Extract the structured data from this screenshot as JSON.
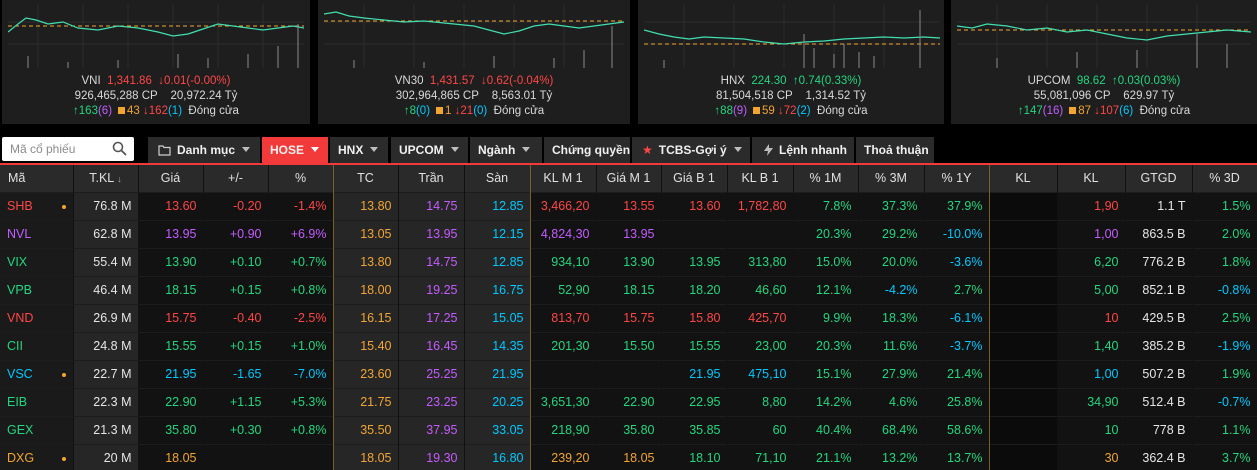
{
  "indices": [
    {
      "name": "VNI",
      "value": "1,341.86",
      "change": "0.01(-0.00%)",
      "dir": "down",
      "volume": "926,465,288",
      "vol_unit": "CP",
      "turnover": "20,972.24",
      "turnover_unit": "Tỷ",
      "up": "163",
      "up_ceil": "(6)",
      "flat": "43",
      "down": "162",
      "down_floor": "(1)",
      "status": "Đóng cửa"
    },
    {
      "name": "VN30",
      "value": "1,431.57",
      "change": "0.62(-0.04%)",
      "dir": "down",
      "volume": "302,964,865",
      "vol_unit": "CP",
      "turnover": "8,563.01",
      "turnover_unit": "Tỷ",
      "up": "8",
      "up_ceil": "(0)",
      "flat": "1",
      "down": "21",
      "down_floor": "(0)",
      "status": "Đóng cửa"
    },
    {
      "name": "HNX",
      "value": "224.30",
      "change": "0.74(0.33%)",
      "dir": "up",
      "volume": "81,504,518",
      "vol_unit": "CP",
      "turnover": "1,314.52",
      "turnover_unit": "Tỷ",
      "up": "88",
      "up_ceil": "(9)",
      "flat": "59",
      "down": "72",
      "down_floor": "(2)",
      "status": "Đóng cửa"
    },
    {
      "name": "UPCOM",
      "value": "98.62",
      "change": "0.03(0.03%)",
      "dir": "up",
      "volume": "55,081,096",
      "vol_unit": "CP",
      "turnover": "629.97",
      "turnover_unit": "Tỷ",
      "up": "147",
      "up_ceil": "(16)",
      "flat": "87",
      "down": "107",
      "down_floor": "(6)",
      "status": "Đóng cửa"
    }
  ],
  "search": {
    "placeholder": "Mã cổ phiếu"
  },
  "tabs": [
    {
      "label": "Danh mục",
      "caret": true
    },
    {
      "label": "HOSE",
      "caret": true,
      "active": true
    },
    {
      "label": "HNX",
      "caret": true
    },
    {
      "label": "UPCOM",
      "caret": true
    },
    {
      "label": "Ngành",
      "caret": true
    },
    {
      "label": "Chứng quyền",
      "caret": false
    },
    {
      "label": "TCBS-Gợi ý",
      "caret": true
    },
    {
      "label": "Lệnh nhanh",
      "caret": false
    },
    {
      "label": "Thoả thuận",
      "caret": false
    }
  ],
  "columns": [
    "Mã",
    "T.KL",
    "Giá",
    "+/-",
    "%",
    "TC",
    "Trần",
    "Sàn",
    "KL M 1",
    "Giá M 1",
    "Giá B 1",
    "KL B 1",
    "% 1M",
    "% 3M",
    "% 1Y",
    "KL",
    "KL",
    "GTGD",
    "% 3D"
  ],
  "colors": {
    "up": "#24d67f",
    "down": "#ff4646",
    "ref": "#f2a531",
    "ceil": "#c45cff",
    "floor": "#00c9ff",
    "white": "#e6e6e6",
    "accent": "#f23a3a"
  },
  "rows": [
    {
      "sym": "SHB",
      "c": "down",
      "dot": true,
      "tkl": "76.8 M",
      "price": "13.60",
      "chg": "-0.20",
      "pct": "-1.4%",
      "tc": "13.80",
      "tran": "14.75",
      "san": "12.85",
      "klm1": "3,466,20",
      "giam1": "13.55",
      "giam1c": "down",
      "giab1": "13.60",
      "giab1c": "down",
      "klb1": "1,782,80",
      "klb1c": "down",
      "p1m": "7.8%",
      "p1mc": "up",
      "p3m": "37.3%",
      "p3mc": "up",
      "p1y": "37.9%",
      "p1yc": "up",
      "kl1": "",
      "kl2": "1,90",
      "kl2c": "down",
      "gtgd": "1.1 T",
      "p3d": "1.5%",
      "p3dc": "up"
    },
    {
      "sym": "NVL",
      "c": "ceil",
      "dot": false,
      "tkl": "62.8 M",
      "price": "13.95",
      "chg": "+0.90",
      "pct": "+6.9%",
      "tc": "13.05",
      "tran": "13.95",
      "san": "12.15",
      "klm1": "4,824,30",
      "giam1": "13.95",
      "giam1c": "ceil",
      "giab1": "",
      "giab1c": "ceil",
      "klb1": "",
      "klb1c": "ceil",
      "p1m": "20.3%",
      "p1mc": "up",
      "p3m": "29.2%",
      "p3mc": "up",
      "p1y": "-10.0%",
      "p1yc": "floor",
      "kl1": "",
      "kl2": "1,00",
      "kl2c": "ceil",
      "gtgd": "863.5 B",
      "p3d": "2.0%",
      "p3dc": "up"
    },
    {
      "sym": "VIX",
      "c": "up",
      "dot": false,
      "tkl": "55.4 M",
      "price": "13.90",
      "chg": "+0.10",
      "pct": "+0.7%",
      "tc": "13.80",
      "tran": "14.75",
      "san": "12.85",
      "klm1": "934,10",
      "giam1": "13.90",
      "giam1c": "up",
      "giab1": "13.95",
      "giab1c": "up",
      "klb1": "313,80",
      "klb1c": "up",
      "p1m": "15.0%",
      "p1mc": "up",
      "p3m": "20.0%",
      "p3mc": "up",
      "p1y": "-3.6%",
      "p1yc": "floor",
      "kl1": "",
      "kl2": "6,20",
      "kl2c": "up",
      "gtgd": "776.2 B",
      "p3d": "1.8%",
      "p3dc": "up"
    },
    {
      "sym": "VPB",
      "c": "up",
      "dot": false,
      "tkl": "46.4 M",
      "price": "18.15",
      "chg": "+0.15",
      "pct": "+0.8%",
      "tc": "18.00",
      "tran": "19.25",
      "san": "16.75",
      "klm1": "52,90",
      "giam1": "18.15",
      "giam1c": "up",
      "giab1": "18.20",
      "giab1c": "up",
      "klb1": "46,60",
      "klb1c": "up",
      "p1m": "12.1%",
      "p1mc": "up",
      "p3m": "-4.2%",
      "p3mc": "floor",
      "p1y": "2.7%",
      "p1yc": "up",
      "kl1": "",
      "kl2": "5,00",
      "kl2c": "up",
      "gtgd": "852.1 B",
      "p3d": "-0.8%",
      "p3dc": "floor"
    },
    {
      "sym": "VND",
      "c": "down",
      "dot": false,
      "tkl": "26.9 M",
      "price": "15.75",
      "chg": "-0.40",
      "pct": "-2.5%",
      "tc": "16.15",
      "tran": "17.25",
      "san": "15.05",
      "klm1": "813,70",
      "giam1": "15.75",
      "giam1c": "down",
      "giab1": "15.80",
      "giab1c": "down",
      "klb1": "425,70",
      "klb1c": "down",
      "p1m": "9.9%",
      "p1mc": "up",
      "p3m": "18.3%",
      "p3mc": "up",
      "p1y": "-6.1%",
      "p1yc": "floor",
      "kl1": "",
      "kl2": "10",
      "kl2c": "down",
      "gtgd": "429.5 B",
      "p3d": "2.5%",
      "p3dc": "up"
    },
    {
      "sym": "CII",
      "c": "up",
      "dot": false,
      "tkl": "24.8 M",
      "price": "15.55",
      "chg": "+0.15",
      "pct": "+1.0%",
      "tc": "15.40",
      "tran": "16.45",
      "san": "14.35",
      "klm1": "201,30",
      "giam1": "15.50",
      "giam1c": "up",
      "giab1": "15.55",
      "giab1c": "up",
      "klb1": "23,00",
      "klb1c": "up",
      "p1m": "20.3%",
      "p1mc": "up",
      "p3m": "11.6%",
      "p3mc": "up",
      "p1y": "-3.7%",
      "p1yc": "floor",
      "kl1": "",
      "kl2": "1,40",
      "kl2c": "up",
      "gtgd": "385.2 B",
      "p3d": "-1.9%",
      "p3dc": "floor"
    },
    {
      "sym": "VSC",
      "c": "floor",
      "dot": true,
      "tkl": "22.7 M",
      "price": "21.95",
      "chg": "-1.65",
      "pct": "-7.0%",
      "tc": "23.60",
      "tran": "25.25",
      "san": "21.95",
      "klm1": "",
      "giam1": "",
      "giam1c": "floor",
      "giab1": "21.95",
      "giab1c": "floor",
      "klb1": "475,10",
      "klb1c": "floor",
      "p1m": "15.1%",
      "p1mc": "up",
      "p3m": "27.9%",
      "p3mc": "up",
      "p1y": "21.4%",
      "p1yc": "up",
      "kl1": "",
      "kl2": "1,00",
      "kl2c": "floor",
      "gtgd": "507.2 B",
      "p3d": "1.9%",
      "p3dc": "up"
    },
    {
      "sym": "EIB",
      "c": "up",
      "dot": false,
      "tkl": "22.3 M",
      "price": "22.90",
      "chg": "+1.15",
      "pct": "+5.3%",
      "tc": "21.75",
      "tran": "23.25",
      "san": "20.25",
      "klm1": "3,651,30",
      "giam1": "22.90",
      "giam1c": "up",
      "giab1": "22.95",
      "giab1c": "up",
      "klb1": "8,80",
      "klb1c": "up",
      "p1m": "14.2%",
      "p1mc": "up",
      "p3m": "4.6%",
      "p3mc": "up",
      "p1y": "25.8%",
      "p1yc": "up",
      "kl1": "",
      "kl2": "34,90",
      "kl2c": "up",
      "gtgd": "512.4 B",
      "p3d": "-0.7%",
      "p3dc": "floor"
    },
    {
      "sym": "GEX",
      "c": "up",
      "dot": false,
      "tkl": "21.3 M",
      "price": "35.80",
      "chg": "+0.30",
      "pct": "+0.8%",
      "tc": "35.50",
      "tran": "37.95",
      "san": "33.05",
      "klm1": "218,90",
      "giam1": "35.80",
      "giam1c": "up",
      "giab1": "35.85",
      "giab1c": "up",
      "klb1": "60",
      "klb1c": "up",
      "p1m": "40.4%",
      "p1mc": "up",
      "p3m": "68.4%",
      "p3mc": "up",
      "p1y": "58.6%",
      "p1yc": "up",
      "kl1": "",
      "kl2": "10",
      "kl2c": "up",
      "gtgd": "778 B",
      "p3d": "1.1%",
      "p3dc": "up"
    },
    {
      "sym": "DXG",
      "c": "ref",
      "dot": true,
      "tkl": "20 M",
      "price": "18.05",
      "chg": "",
      "pct": "",
      "tc": "18.05",
      "tran": "19.30",
      "san": "16.80",
      "klm1": "239,20",
      "giam1": "18.05",
      "giam1c": "ref",
      "giab1": "18.10",
      "giab1c": "up",
      "klb1": "71,10",
      "klb1c": "up",
      "p1m": "21.1%",
      "p1mc": "up",
      "p3m": "13.2%",
      "p3mc": "up",
      "p1y": "13.7%",
      "p1yc": "up",
      "kl1": "",
      "kl2": "30",
      "kl2c": "ref",
      "gtgd": "362.4 B",
      "p3d": "3.7%",
      "p3dc": "up"
    }
  ]
}
